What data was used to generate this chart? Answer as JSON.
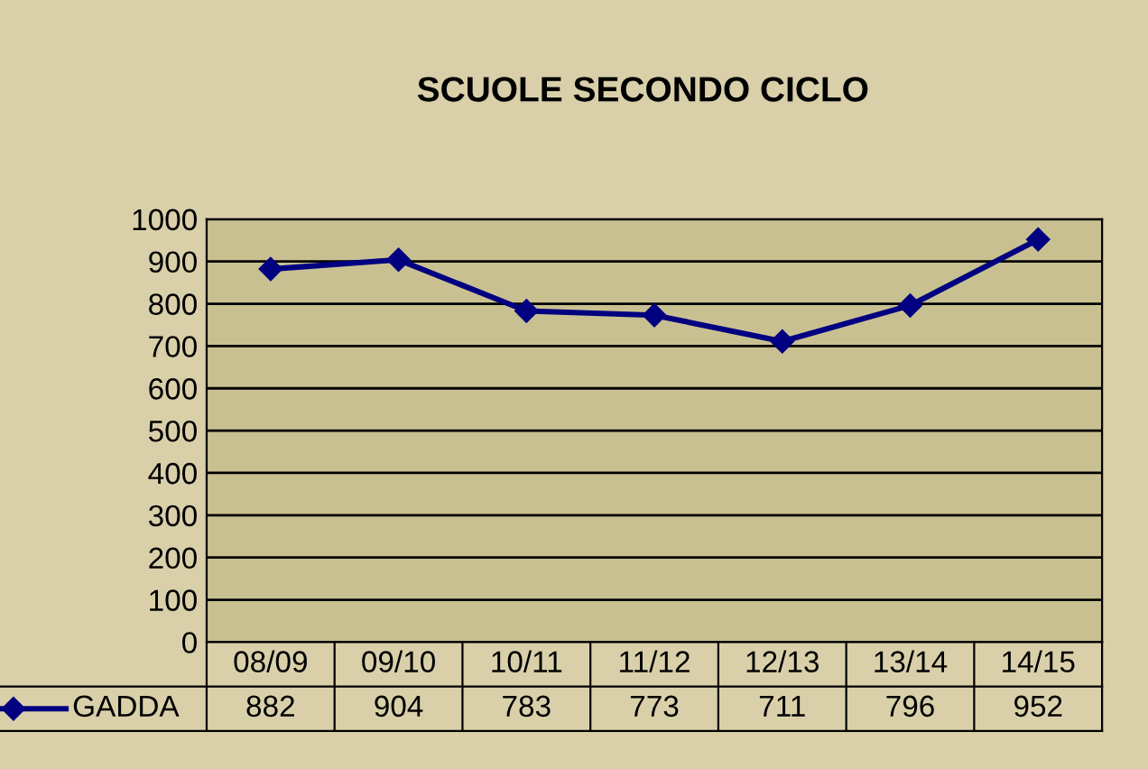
{
  "chart_data": {
    "type": "line",
    "title": "SCUOLE SECONDO CICLO",
    "categories": [
      "08/09",
      "09/10",
      "10/11",
      "11/12",
      "12/13",
      "13/14",
      "14/15"
    ],
    "series": [
      {
        "name": "GADDA",
        "color": "#000080",
        "values": [
          882,
          904,
          783,
          773,
          711,
          796,
          952
        ]
      }
    ],
    "ylim": [
      0,
      1000
    ],
    "yticks": [
      0,
      100,
      200,
      300,
      400,
      500,
      600,
      700,
      800,
      900,
      1000
    ],
    "grid": "y",
    "marker": "diamond",
    "line_style": "solid",
    "data_labels": true,
    "legend": "bottom left"
  }
}
